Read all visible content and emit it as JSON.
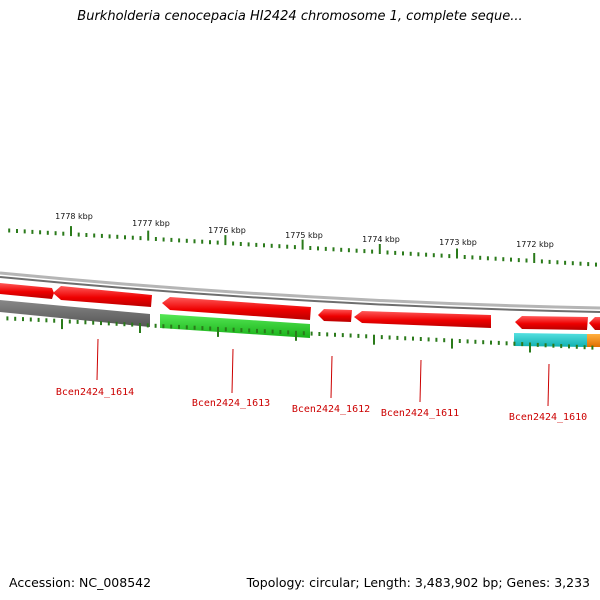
{
  "title": "Burkholderia cenocepacia HI2424 chromosome 1, complete seque...",
  "footer": {
    "accession": "Accession: NC_008542",
    "summary": "Topology: circular; Length: 3,483,902 bp; Genes: 3,233"
  },
  "colors": {
    "tick": "#2a7a1a",
    "forward_gene": "#ee0000",
    "reverse_gray": "#666666",
    "reverse_green": "#22cc22",
    "reverse_cyan": "#11cccc",
    "reverse_orange": "#ff8c00",
    "label": "#cc0000",
    "backbone": "#999999"
  },
  "scale_labels": [
    "1778 kbp",
    "1777 kbp",
    "1776 kbp",
    "1775 kbp",
    "1774 kbp",
    "1773 kbp",
    "1772 kbp"
  ],
  "gene_labels": [
    "Bcen2424_1614",
    "Bcen2424_1613",
    "Bcen2424_1612",
    "Bcen2424_1611",
    "Bcen2424_1610"
  ]
}
